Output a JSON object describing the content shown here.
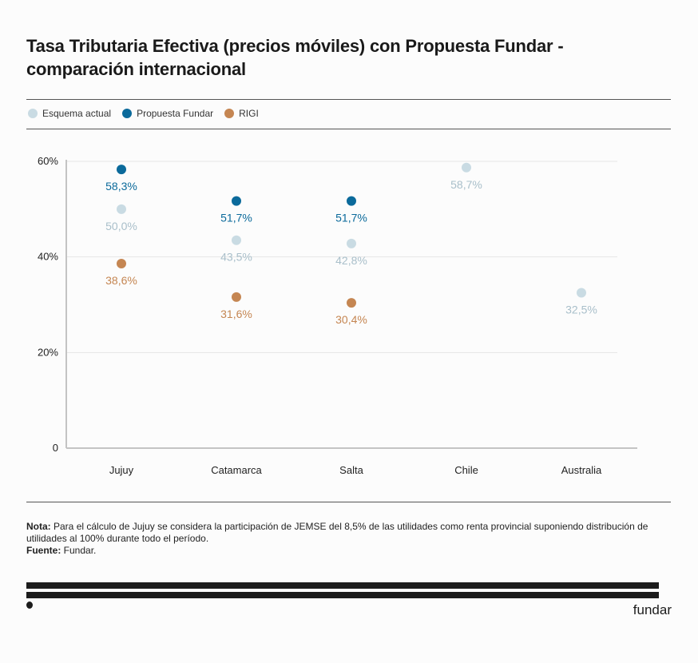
{
  "title": "Tasa Tributaria Efectiva (precios móviles) con Propuesta Fundar - comparación internacional",
  "legend": [
    {
      "label": "Esquema actual",
      "color": "#c9dbe3"
    },
    {
      "label": "Propuesta Fundar",
      "color": "#0b6a9b"
    },
    {
      "label": "RIGI",
      "color": "#c58652"
    }
  ],
  "chart_data": {
    "type": "scatter",
    "title": "Tasa Tributaria Efectiva (precios móviles) con Propuesta Fundar - comparación internacional",
    "xlabel": "",
    "ylabel": "",
    "categories": [
      "Jujuy",
      "Catamarca",
      "Salta",
      "Chile",
      "Australia"
    ],
    "ylim": [
      0,
      60
    ],
    "yticks": [
      0,
      20,
      40,
      60
    ],
    "ytick_labels": [
      "0",
      "20%",
      "40%",
      "60%"
    ],
    "grid": true,
    "legend_position": "top-left",
    "series": [
      {
        "name": "Esquema actual",
        "color": "#c9dbe3",
        "label_color": "#a9bfca",
        "values": [
          50.0,
          43.5,
          42.8,
          58.7,
          32.5
        ],
        "labels": [
          "50,0%",
          "43,5%",
          "42,8%",
          "58,7%",
          "32,5%"
        ]
      },
      {
        "name": "Propuesta Fundar",
        "color": "#0b6a9b",
        "label_color": "#0b6a9b",
        "values": [
          58.3,
          51.7,
          51.7,
          null,
          null
        ],
        "labels": [
          "58,3%",
          "51,7%",
          "51,7%",
          null,
          null
        ]
      },
      {
        "name": "RIGI",
        "color": "#c58652",
        "label_color": "#c58652",
        "values": [
          38.6,
          31.6,
          30.4,
          null,
          null
        ],
        "labels": [
          "38,6%",
          "31,6%",
          "30,4%",
          null,
          null
        ]
      }
    ]
  },
  "note": {
    "note_label": "Nota:",
    "note_text": " Para el cálculo de Jujuy se considera la participación de JEMSE del 8,5% de las utilidades como renta provincial suponiendo distribución de utilidades al 100% durante todo el período.",
    "source_label": "Fuente:",
    "source_text": " Fundar."
  },
  "brand": "fundar"
}
